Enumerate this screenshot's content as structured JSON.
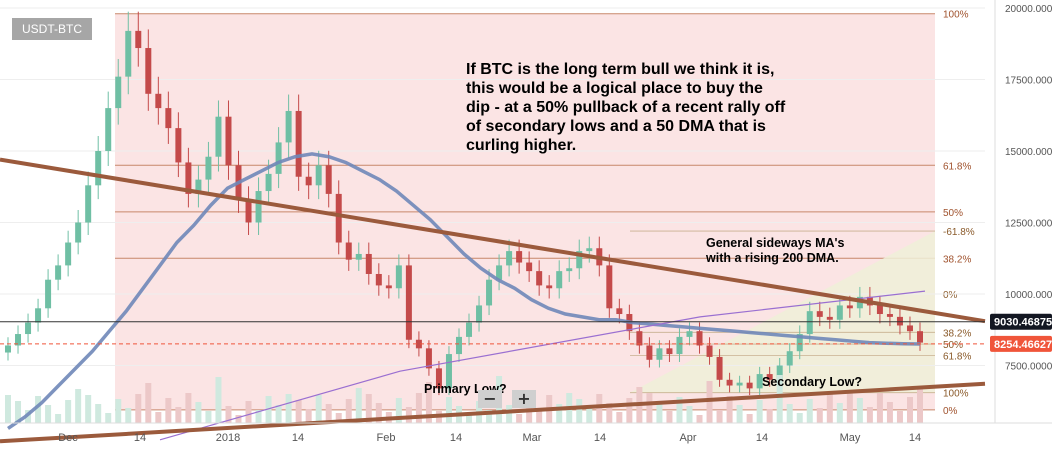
{
  "symbol": "USDT-BTC",
  "annotations": {
    "main": "If BTC is the long term bull we think it is, this would be a logical place to buy the dip - at a 50% pullback of a recent rally off of secondary lows and a 50 DMA that is curling higher.",
    "ma": "General sideways MA's with a rising 200 DMA.",
    "primary_low": "Primary Low?",
    "secondary_low": "Secondary Low?"
  },
  "controls": {
    "zoom_out": "−",
    "zoom_in": "+"
  },
  "colors": {
    "up": "#6fbfa4",
    "down": "#c44a4a",
    "trendline": "#9b5a3c",
    "ma50": "#6f87b8",
    "ma200": "#9a6fd1",
    "fib_zone_1": "#fbe4e4",
    "fib_zone_2": "#eef0d8",
    "last_price": "#f0553a",
    "crosshair_price": "#131722"
  },
  "chart_data": {
    "type": "candlestick",
    "x_ticks": [
      "Dec",
      "14",
      "2018",
      "14",
      "Feb",
      "14",
      "Mar",
      "14",
      "Apr",
      "14",
      "May",
      "14"
    ],
    "y_ticks": [
      "20000.0000",
      "17500.0000",
      "15000.0000",
      "12500.0000",
      "10000.0000",
      "7500.0000"
    ],
    "ylim": [
      5000,
      20000
    ],
    "price_labels": {
      "crosshair": "9030.46875",
      "last": "8254.46627"
    },
    "fib_levels_first": [
      {
        "label": "100%",
        "price": 19800
      },
      {
        "label": "61.8%",
        "price": 14500
      },
      {
        "label": "50%",
        "price": 12870
      },
      {
        "label": "38.2%",
        "price": 11250
      },
      {
        "label": "0%",
        "price": 5950
      }
    ],
    "fib_levels_second": [
      {
        "label": "-61.8%",
        "price": 12200
      },
      {
        "label": "0%",
        "price": 10000
      },
      {
        "label": "38.2%",
        "price": 8660
      },
      {
        "label": "50%",
        "price": 8250
      },
      {
        "label": "61.8%",
        "price": 7850
      },
      {
        "label": "100%",
        "price": 6550
      }
    ],
    "trendlines": [
      {
        "name": "resistance",
        "from": [
          0,
          14700
        ],
        "to": [
          1,
          9050
        ]
      },
      {
        "name": "support",
        "from": [
          0,
          4850
        ],
        "to": [
          1,
          6860
        ]
      }
    ],
    "series": [
      {
        "name": "close",
        "values": [
          8200,
          8600,
          9000,
          9500,
          10500,
          11000,
          11800,
          12500,
          13800,
          15000,
          16500,
          17600,
          19200,
          18600,
          17000,
          16500,
          15800,
          14600,
          13500,
          14000,
          14800,
          16200,
          14500,
          13300,
          12500,
          13600,
          14200,
          15300,
          16400,
          14100,
          13800,
          14500,
          13500,
          11800,
          11200,
          11400,
          10700,
          10300,
          10200,
          11000,
          8400,
          8100,
          7400,
          6700,
          7900,
          8500,
          9000,
          9600,
          10500,
          11000,
          11500,
          11100,
          10800,
          10300,
          10200,
          10800,
          10900,
          11500,
          11600,
          11000,
          9500,
          9300,
          8700,
          8200,
          7700,
          8100,
          7900,
          8500,
          8700,
          8200,
          7800,
          7000,
          6800,
          6900,
          6700,
          7200,
          7000,
          7500,
          8000,
          8600,
          9400,
          9200,
          9100,
          9600,
          9500,
          9900,
          9600,
          9300,
          9200,
          8900,
          8700,
          8300
        ]
      },
      {
        "name": "50 DMA",
        "values": [
          5300,
          5700,
          6200,
          6800,
          7400,
          8000,
          8700,
          9400,
          10200,
          11000,
          11800,
          12400,
          13100,
          13700,
          14000,
          14300,
          14600,
          14800,
          14900,
          14800,
          14600,
          14300,
          14000,
          13600,
          13100,
          12600,
          12000,
          11400,
          10900,
          10500,
          10200,
          9800,
          9500,
          9300,
          9200,
          9100,
          9100,
          9000,
          8950,
          8900,
          8850,
          8800,
          8750,
          8700,
          8650,
          8600,
          8550,
          8500,
          8450,
          8400,
          8350,
          8300,
          8280,
          8260,
          8250
        ]
      }
    ]
  }
}
